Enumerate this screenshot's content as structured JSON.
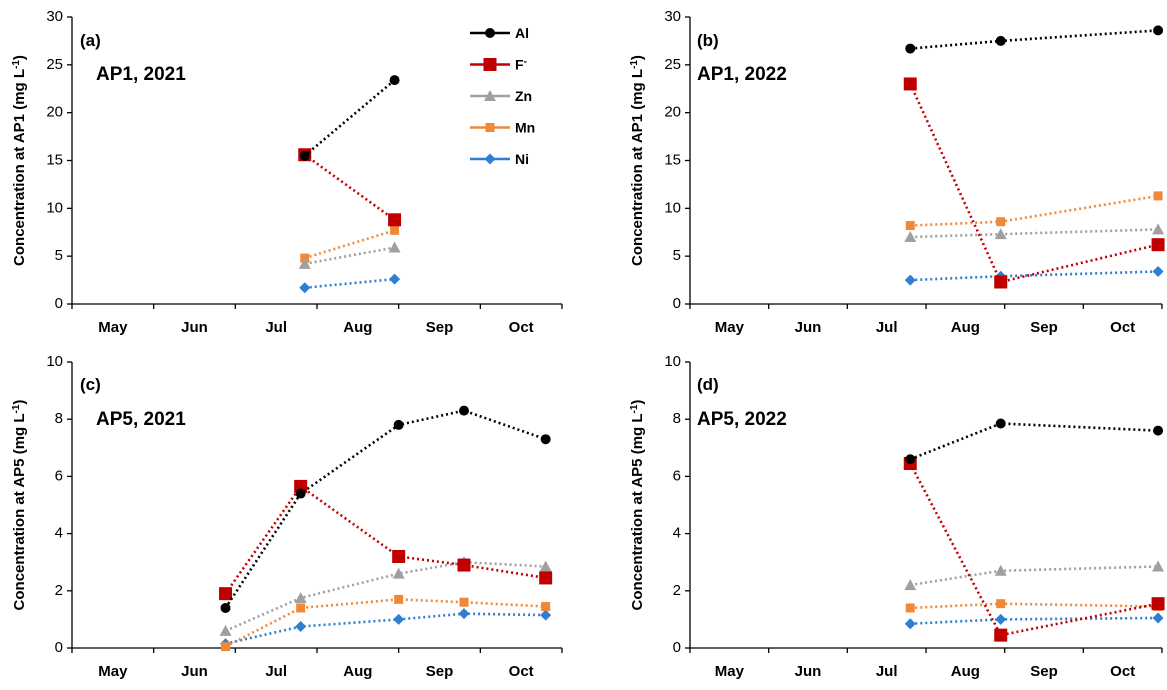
{
  "legend": [
    {
      "name": "Al",
      "color": "#000000",
      "marker": "circle"
    },
    {
      "name": "F",
      "sup": "-",
      "color": "#c00000",
      "marker": "square"
    },
    {
      "name": "Zn",
      "color": "#a0a0a0",
      "marker": "triangle"
    },
    {
      "name": "Mn",
      "color": "#f0883a",
      "marker": "square"
    },
    {
      "name": "Ni",
      "color": "#2e7fd0",
      "marker": "diamond"
    }
  ],
  "chart_data": [
    {
      "type": "line",
      "panel_label": "(a)",
      "title": "AP1, 2021",
      "ylabel": "Concentration at AP1 (mg L",
      "ylabel_sup": "-1",
      "ylabel_tail": ")",
      "categories": [
        "May",
        "Jun",
        "Jul",
        "Aug",
        "Sep",
        "Oct"
      ],
      "ylim": [
        0,
        30
      ],
      "yticks": [
        0,
        5,
        10,
        15,
        20,
        25,
        30
      ],
      "series": [
        {
          "name": "Al",
          "points": [
            {
              "x": 2.85,
              "y": 15.5
            },
            {
              "x": 3.95,
              "y": 23.4
            }
          ]
        },
        {
          "name": "F",
          "points": [
            {
              "x": 2.85,
              "y": 15.6
            },
            {
              "x": 3.95,
              "y": 8.8
            }
          ]
        },
        {
          "name": "Zn",
          "points": [
            {
              "x": 2.85,
              "y": 4.2
            },
            {
              "x": 3.95,
              "y": 5.9
            }
          ]
        },
        {
          "name": "Mn",
          "points": [
            {
              "x": 2.85,
              "y": 4.8
            },
            {
              "x": 3.95,
              "y": 7.7
            }
          ]
        },
        {
          "name": "Ni",
          "points": [
            {
              "x": 2.85,
              "y": 1.7
            },
            {
              "x": 3.95,
              "y": 2.6
            }
          ]
        }
      ]
    },
    {
      "type": "line",
      "panel_label": "(b)",
      "title": "AP1, 2022",
      "ylabel": "Concentration at AP1 (mg L",
      "ylabel_sup": "-1",
      "ylabel_tail": ")",
      "categories": [
        "May",
        "Jun",
        "Jul",
        "Aug",
        "Sep",
        "Oct"
      ],
      "ylim": [
        0,
        30
      ],
      "yticks": [
        0,
        5,
        10,
        15,
        20,
        25,
        30
      ],
      "series": [
        {
          "name": "Al",
          "points": [
            {
              "x": 2.8,
              "y": 26.7
            },
            {
              "x": 3.95,
              "y": 27.5
            },
            {
              "x": 5.95,
              "y": 28.6
            }
          ]
        },
        {
          "name": "F",
          "points": [
            {
              "x": 2.8,
              "y": 23.0
            },
            {
              "x": 3.95,
              "y": 2.3
            },
            {
              "x": 5.95,
              "y": 6.2
            }
          ]
        },
        {
          "name": "Zn",
          "points": [
            {
              "x": 2.8,
              "y": 7.0
            },
            {
              "x": 3.95,
              "y": 7.3
            },
            {
              "x": 5.95,
              "y": 7.8
            }
          ]
        },
        {
          "name": "Mn",
          "points": [
            {
              "x": 2.8,
              "y": 8.2
            },
            {
              "x": 3.95,
              "y": 8.6
            },
            {
              "x": 5.95,
              "y": 11.3
            }
          ]
        },
        {
          "name": "Ni",
          "points": [
            {
              "x": 2.8,
              "y": 2.5
            },
            {
              "x": 3.95,
              "y": 2.9
            },
            {
              "x": 5.95,
              "y": 3.4
            }
          ]
        }
      ]
    },
    {
      "type": "line",
      "panel_label": "(c)",
      "title": "AP5, 2021",
      "ylabel": "Concentration at AP5 (mg L",
      "ylabel_sup": "-1",
      "ylabel_tail": ")",
      "categories": [
        "May",
        "Jun",
        "Jul",
        "Aug",
        "Sep",
        "Oct"
      ],
      "ylim": [
        0,
        10
      ],
      "yticks": [
        0,
        2,
        4,
        6,
        8,
        10
      ],
      "series": [
        {
          "name": "Al",
          "points": [
            {
              "x": 1.88,
              "y": 1.4
            },
            {
              "x": 2.8,
              "y": 5.4
            },
            {
              "x": 4.0,
              "y": 7.8
            },
            {
              "x": 4.8,
              "y": 8.3
            },
            {
              "x": 5.8,
              "y": 7.3
            }
          ]
        },
        {
          "name": "F",
          "points": [
            {
              "x": 1.88,
              "y": 1.9
            },
            {
              "x": 2.8,
              "y": 5.65
            },
            {
              "x": 4.0,
              "y": 3.2
            },
            {
              "x": 4.8,
              "y": 2.9
            },
            {
              "x": 5.8,
              "y": 2.45
            }
          ]
        },
        {
          "name": "Zn",
          "points": [
            {
              "x": 1.88,
              "y": 0.6
            },
            {
              "x": 2.8,
              "y": 1.75
            },
            {
              "x": 4.0,
              "y": 2.6
            },
            {
              "x": 4.8,
              "y": 3.0
            },
            {
              "x": 5.8,
              "y": 2.85
            }
          ]
        },
        {
          "name": "Mn",
          "points": [
            {
              "x": 1.88,
              "y": 0.05
            },
            {
              "x": 2.8,
              "y": 1.4
            },
            {
              "x": 4.0,
              "y": 1.7
            },
            {
              "x": 4.8,
              "y": 1.6
            },
            {
              "x": 5.8,
              "y": 1.45
            }
          ]
        },
        {
          "name": "Ni",
          "points": [
            {
              "x": 1.88,
              "y": 0.15
            },
            {
              "x": 2.8,
              "y": 0.75
            },
            {
              "x": 4.0,
              "y": 1.0
            },
            {
              "x": 4.8,
              "y": 1.2
            },
            {
              "x": 5.8,
              "y": 1.15
            }
          ]
        }
      ]
    },
    {
      "type": "line",
      "panel_label": "(d)",
      "title": "AP5, 2022",
      "ylabel": "Concentration at AP5 (mg L",
      "ylabel_sup": "-1",
      "ylabel_tail": ")",
      "categories": [
        "May",
        "Jun",
        "Jul",
        "Aug",
        "Sep",
        "Oct"
      ],
      "ylim": [
        0,
        10
      ],
      "yticks": [
        0,
        2,
        4,
        6,
        8,
        10
      ],
      "series": [
        {
          "name": "Al",
          "points": [
            {
              "x": 2.8,
              "y": 6.6
            },
            {
              "x": 3.95,
              "y": 7.85
            },
            {
              "x": 5.95,
              "y": 7.6
            }
          ]
        },
        {
          "name": "F",
          "points": [
            {
              "x": 2.8,
              "y": 6.45
            },
            {
              "x": 3.95,
              "y": 0.45
            },
            {
              "x": 5.95,
              "y": 1.55
            }
          ]
        },
        {
          "name": "Zn",
          "points": [
            {
              "x": 2.8,
              "y": 2.2
            },
            {
              "x": 3.95,
              "y": 2.7
            },
            {
              "x": 5.95,
              "y": 2.85
            }
          ]
        },
        {
          "name": "Mn",
          "points": [
            {
              "x": 2.8,
              "y": 1.4
            },
            {
              "x": 3.95,
              "y": 1.55
            },
            {
              "x": 5.95,
              "y": 1.45
            }
          ]
        },
        {
          "name": "Ni",
          "points": [
            {
              "x": 2.8,
              "y": 0.85
            },
            {
              "x": 3.95,
              "y": 1.0
            },
            {
              "x": 5.95,
              "y": 1.05
            }
          ]
        }
      ]
    }
  ]
}
